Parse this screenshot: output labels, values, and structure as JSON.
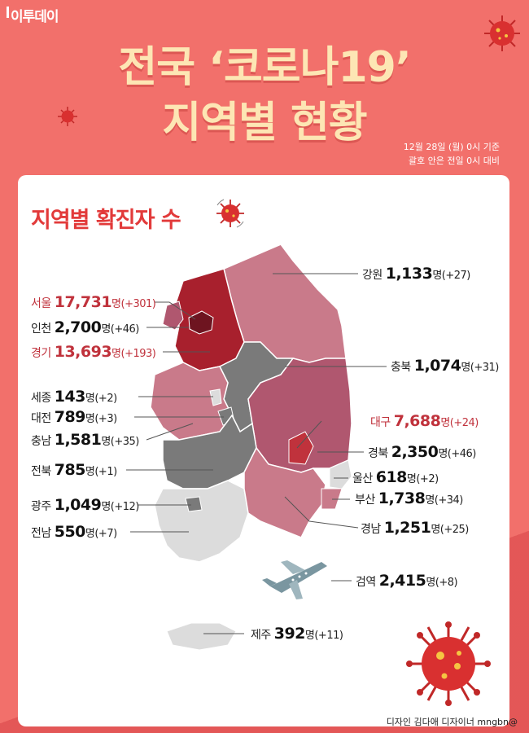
{
  "brand": "이투데이",
  "title_line1": "전국 ‘코로나19’",
  "title_line2": "지역별 현황",
  "date_line1": "12월 28일 (월) 0시 기준",
  "date_line2": "괄호 안은 전일 0시 대비",
  "subtitle": "지역별 확진자 수",
  "unit": "명",
  "regions": [
    {
      "name": "서울",
      "value": "17,731",
      "change": "(+301)",
      "highlight": true
    },
    {
      "name": "인천",
      "value": "2,700",
      "change": "(+46)",
      "highlight": false
    },
    {
      "name": "경기",
      "value": "13,693",
      "change": "(+193)",
      "highlight": true
    },
    {
      "name": "세종",
      "value": "143",
      "change": "(+2)",
      "highlight": false
    },
    {
      "name": "대전",
      "value": "789",
      "change": "(+3)",
      "highlight": false
    },
    {
      "name": "충남",
      "value": "1,581",
      "change": "(+35)",
      "highlight": false
    },
    {
      "name": "전북",
      "value": "785",
      "change": "(+1)",
      "highlight": false
    },
    {
      "name": "광주",
      "value": "1,049",
      "change": "(+12)",
      "highlight": false
    },
    {
      "name": "전남",
      "value": "550",
      "change": "(+7)",
      "highlight": false
    },
    {
      "name": "강원",
      "value": "1,133",
      "change": "(+27)",
      "highlight": false
    },
    {
      "name": "충북",
      "value": "1,074",
      "change": "(+31)",
      "highlight": false
    },
    {
      "name": "대구",
      "value": "7,688",
      "change": "(+24)",
      "highlight": true
    },
    {
      "name": "경북",
      "value": "2,350",
      "change": "(+46)",
      "highlight": false
    },
    {
      "name": "울산",
      "value": "618",
      "change": "(+2)",
      "highlight": false
    },
    {
      "name": "부산",
      "value": "1,738",
      "change": "(+34)",
      "highlight": false
    },
    {
      "name": "경남",
      "value": "1,251",
      "change": "(+25)",
      "highlight": false
    },
    {
      "name": "검역",
      "value": "2,415",
      "change": "(+8)",
      "highlight": false
    },
    {
      "name": "제주",
      "value": "392",
      "change": "(+11)",
      "highlight": false
    }
  ],
  "credit": "디자인 김다애 디자이너 mngbn@",
  "colors": {
    "background": "#f2706b",
    "title": "#fde6b4",
    "accent_red": "#e23a3a",
    "seoul": "#6e1420",
    "gyeonggi": "#a8202d",
    "gangwon": "#c97a8a",
    "daegu": "#c0323c",
    "gyeongbuk": "#b0576f",
    "gray_dark": "#7a7a7a",
    "gray_light": "#dcdcdc"
  },
  "icons": [
    "virus-icon",
    "airplane-icon"
  ]
}
